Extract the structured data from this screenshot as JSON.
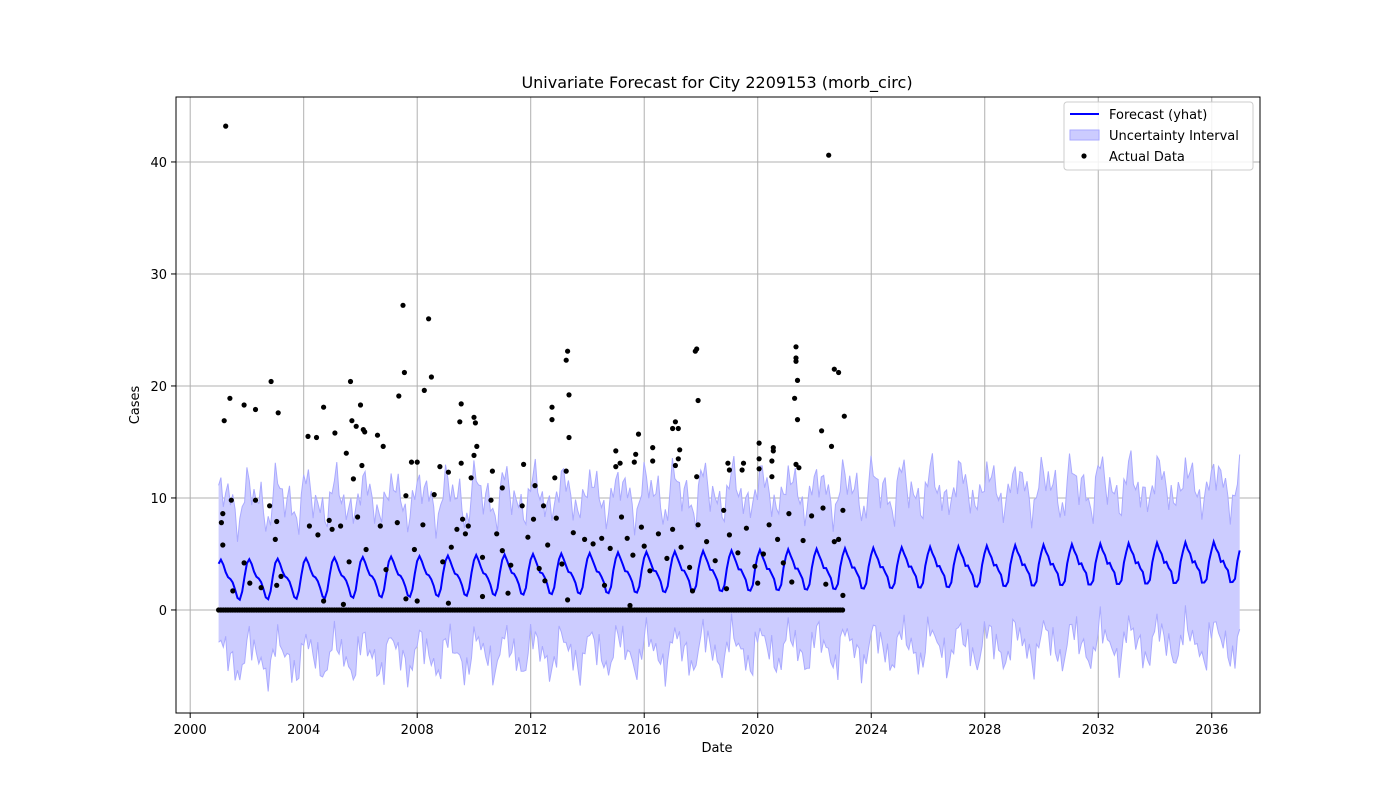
{
  "chart_data": {
    "type": "line",
    "title": "Univariate Forecast for City 2209153 (morb_circ)",
    "xlabel": "Date",
    "ylabel": "Cases",
    "xlim": [
      1999.5,
      2037.7
    ],
    "ylim": [
      -9.2,
      45.8
    ],
    "grid": true,
    "legend_position": "top-right",
    "x_ticks": [
      2000,
      2004,
      2008,
      2012,
      2016,
      2020,
      2024,
      2028,
      2032,
      2036
    ],
    "x_tick_labels": [
      "2000",
      "2004",
      "2008",
      "2012",
      "2016",
      "2020",
      "2024",
      "2028",
      "2032",
      "2036"
    ],
    "y_ticks": [
      0,
      10,
      20,
      30,
      40
    ],
    "y_tick_labels": [
      "0",
      "10",
      "20",
      "30",
      "40"
    ],
    "colors": {
      "forecast": "#0000ff",
      "interval_fill": "#ccccff",
      "interval_edge": "#aaaaff",
      "actual": "#000000"
    },
    "legend": [
      {
        "label": "Forecast (yhat)",
        "kind": "line"
      },
      {
        "label": "Uncertainty Interval",
        "kind": "patch"
      },
      {
        "label": "Actual Data",
        "kind": "marker"
      }
    ],
    "forecast_model": {
      "start": 2001.0,
      "end": 2037.0,
      "step": 0.0833,
      "base_start": 2.7,
      "base_end": 4.2,
      "seasonal_amplitude": 1.5,
      "interval_half_width": 7.0
    },
    "series": [
      {
        "name": "Actual Data",
        "type": "scatter",
        "points": [
          [
            2001.25,
            43.2
          ],
          [
            2001.2,
            16.9
          ],
          [
            2001.4,
            18.9
          ],
          [
            2001.15,
            8.6
          ],
          [
            2001.1,
            7.8
          ],
          [
            2001.15,
            5.8
          ],
          [
            2001.45,
            9.8
          ],
          [
            2001.9,
            18.3
          ],
          [
            2002.3,
            17.9
          ],
          [
            2002.3,
            9.8
          ],
          [
            2002.85,
            20.4
          ],
          [
            2003.1,
            17.6
          ],
          [
            2002.8,
            9.3
          ],
          [
            2003.05,
            7.9
          ],
          [
            2003.0,
            6.3
          ],
          [
            2003.05,
            2.2
          ],
          [
            2002.5,
            2.0
          ],
          [
            2004.15,
            15.5
          ],
          [
            2004.45,
            15.4
          ],
          [
            2004.7,
            18.1
          ],
          [
            2005.1,
            15.8
          ],
          [
            2005.5,
            14.0
          ],
          [
            2005.65,
            20.4
          ],
          [
            2005.7,
            16.9
          ],
          [
            2005.85,
            16.4
          ],
          [
            2006.0,
            18.3
          ],
          [
            2006.1,
            16.1
          ],
          [
            2006.15,
            15.9
          ],
          [
            2006.6,
            15.6
          ],
          [
            2006.8,
            14.6
          ],
          [
            2005.75,
            11.7
          ],
          [
            2006.05,
            12.9
          ],
          [
            2007.35,
            19.1
          ],
          [
            2007.5,
            27.2
          ],
          [
            2007.55,
            21.2
          ],
          [
            2007.8,
            13.2
          ],
          [
            2008.0,
            13.2
          ],
          [
            2008.4,
            26.0
          ],
          [
            2008.5,
            20.8
          ],
          [
            2008.25,
            19.6
          ],
          [
            2009.55,
            18.4
          ],
          [
            2009.5,
            16.8
          ],
          [
            2008.8,
            12.8
          ],
          [
            2009.1,
            12.3
          ],
          [
            2009.55,
            13.1
          ],
          [
            2010.0,
            17.2
          ],
          [
            2010.05,
            16.7
          ],
          [
            2010.1,
            14.6
          ],
          [
            2010.0,
            13.8
          ],
          [
            2010.65,
            12.4
          ],
          [
            2011.0,
            10.9
          ],
          [
            2011.75,
            13.0
          ],
          [
            2012.15,
            11.1
          ],
          [
            2012.45,
            9.3
          ],
          [
            2012.75,
            18.1
          ],
          [
            2012.75,
            17.0
          ],
          [
            2013.3,
            23.1
          ],
          [
            2013.25,
            22.3
          ],
          [
            2013.35,
            19.2
          ],
          [
            2013.35,
            15.4
          ],
          [
            2013.25,
            12.4
          ],
          [
            2012.85,
            11.8
          ],
          [
            2015.0,
            14.2
          ],
          [
            2015.0,
            12.8
          ],
          [
            2015.15,
            13.1
          ],
          [
            2015.8,
            15.7
          ],
          [
            2015.7,
            13.9
          ],
          [
            2015.65,
            13.2
          ],
          [
            2016.3,
            14.5
          ],
          [
            2016.3,
            13.3
          ],
          [
            2017.1,
            16.8
          ],
          [
            2017.2,
            16.2
          ],
          [
            2017.0,
            16.2
          ],
          [
            2017.25,
            14.3
          ],
          [
            2017.2,
            13.5
          ],
          [
            2017.1,
            12.9
          ],
          [
            2017.85,
            23.3
          ],
          [
            2017.8,
            23.1
          ],
          [
            2017.9,
            18.7
          ],
          [
            2017.85,
            11.9
          ],
          [
            2018.95,
            13.1
          ],
          [
            2019.0,
            12.5
          ],
          [
            2019.5,
            13.1
          ],
          [
            2019.45,
            12.5
          ],
          [
            2020.05,
            14.9
          ],
          [
            2020.05,
            13.5
          ],
          [
            2020.05,
            12.6
          ],
          [
            2020.55,
            14.5
          ],
          [
            2020.55,
            14.2
          ],
          [
            2020.5,
            13.3
          ],
          [
            2020.5,
            11.9
          ],
          [
            2021.35,
            23.5
          ],
          [
            2021.35,
            22.5
          ],
          [
            2021.35,
            22.2
          ],
          [
            2021.4,
            20.5
          ],
          [
            2021.3,
            18.9
          ],
          [
            2021.4,
            17.0
          ],
          [
            2021.35,
            13.0
          ],
          [
            2021.45,
            12.7
          ],
          [
            2022.5,
            40.6
          ],
          [
            2022.7,
            21.5
          ],
          [
            2022.85,
            21.2
          ],
          [
            2022.6,
            14.6
          ],
          [
            2022.25,
            16.0
          ],
          [
            2023.05,
            17.3
          ],
          [
            2023.0,
            8.9
          ],
          [
            2023.0,
            1.3
          ],
          [
            2002.1,
            2.4
          ],
          [
            2003.2,
            3.0
          ],
          [
            2004.2,
            7.5
          ],
          [
            2004.5,
            6.7
          ],
          [
            2004.9,
            8.0
          ],
          [
            2005.0,
            7.2
          ],
          [
            2005.3,
            7.5
          ],
          [
            2005.6,
            4.3
          ],
          [
            2005.9,
            8.3
          ],
          [
            2006.2,
            5.4
          ],
          [
            2006.7,
            7.5
          ],
          [
            2006.9,
            3.6
          ],
          [
            2007.3,
            7.8
          ],
          [
            2007.6,
            10.2
          ],
          [
            2007.9,
            5.4
          ],
          [
            2008.2,
            7.6
          ],
          [
            2008.6,
            10.3
          ],
          [
            2008.9,
            4.3
          ],
          [
            2009.2,
            5.6
          ],
          [
            2009.4,
            7.2
          ],
          [
            2009.6,
            8.1
          ],
          [
            2009.7,
            6.8
          ],
          [
            2009.8,
            7.5
          ],
          [
            2009.9,
            11.8
          ],
          [
            2010.3,
            4.7
          ],
          [
            2010.6,
            9.8
          ],
          [
            2010.8,
            6.8
          ],
          [
            2011.0,
            5.3
          ],
          [
            2011.3,
            4.0
          ],
          [
            2011.7,
            9.3
          ],
          [
            2011.9,
            6.5
          ],
          [
            2012.1,
            8.1
          ],
          [
            2012.3,
            3.7
          ],
          [
            2012.6,
            5.8
          ],
          [
            2012.9,
            8.2
          ],
          [
            2013.1,
            4.1
          ],
          [
            2013.5,
            6.9
          ],
          [
            2013.9,
            6.3
          ],
          [
            2014.2,
            5.9
          ],
          [
            2014.5,
            6.4
          ],
          [
            2014.8,
            5.5
          ],
          [
            2015.2,
            8.3
          ],
          [
            2015.4,
            6.4
          ],
          [
            2015.6,
            4.9
          ],
          [
            2015.9,
            7.4
          ],
          [
            2016.0,
            5.7
          ],
          [
            2016.2,
            3.5
          ],
          [
            2016.5,
            6.8
          ],
          [
            2016.8,
            4.6
          ],
          [
            2017.0,
            7.2
          ],
          [
            2017.3,
            5.6
          ],
          [
            2017.6,
            3.8
          ],
          [
            2017.9,
            7.6
          ],
          [
            2018.2,
            6.1
          ],
          [
            2018.5,
            4.4
          ],
          [
            2018.8,
            8.9
          ],
          [
            2019.0,
            6.7
          ],
          [
            2019.3,
            5.1
          ],
          [
            2019.6,
            7.3
          ],
          [
            2019.9,
            3.9
          ],
          [
            2020.2,
            5.0
          ],
          [
            2020.4,
            7.6
          ],
          [
            2020.7,
            6.3
          ],
          [
            2020.9,
            4.2
          ],
          [
            2021.1,
            8.6
          ],
          [
            2021.6,
            6.2
          ],
          [
            2021.9,
            8.4
          ],
          [
            2022.3,
            9.1
          ],
          [
            2022.7,
            6.1
          ],
          [
            2022.85,
            6.3
          ],
          [
            2001.5,
            1.7
          ],
          [
            2001.9,
            4.2
          ],
          [
            2004.7,
            0.8
          ],
          [
            2005.4,
            0.5
          ],
          [
            2007.6,
            1.0
          ],
          [
            2008.0,
            0.8
          ],
          [
            2009.1,
            0.6
          ],
          [
            2010.3,
            1.2
          ],
          [
            2011.2,
            1.5
          ],
          [
            2012.5,
            2.6
          ],
          [
            2013.3,
            0.9
          ],
          [
            2014.6,
            2.2
          ],
          [
            2015.5,
            0.4
          ],
          [
            2017.7,
            1.7
          ],
          [
            2018.9,
            1.9
          ],
          [
            2020.0,
            2.4
          ],
          [
            2021.2,
            2.5
          ],
          [
            2022.4,
            2.3
          ]
        ]
      }
    ]
  }
}
